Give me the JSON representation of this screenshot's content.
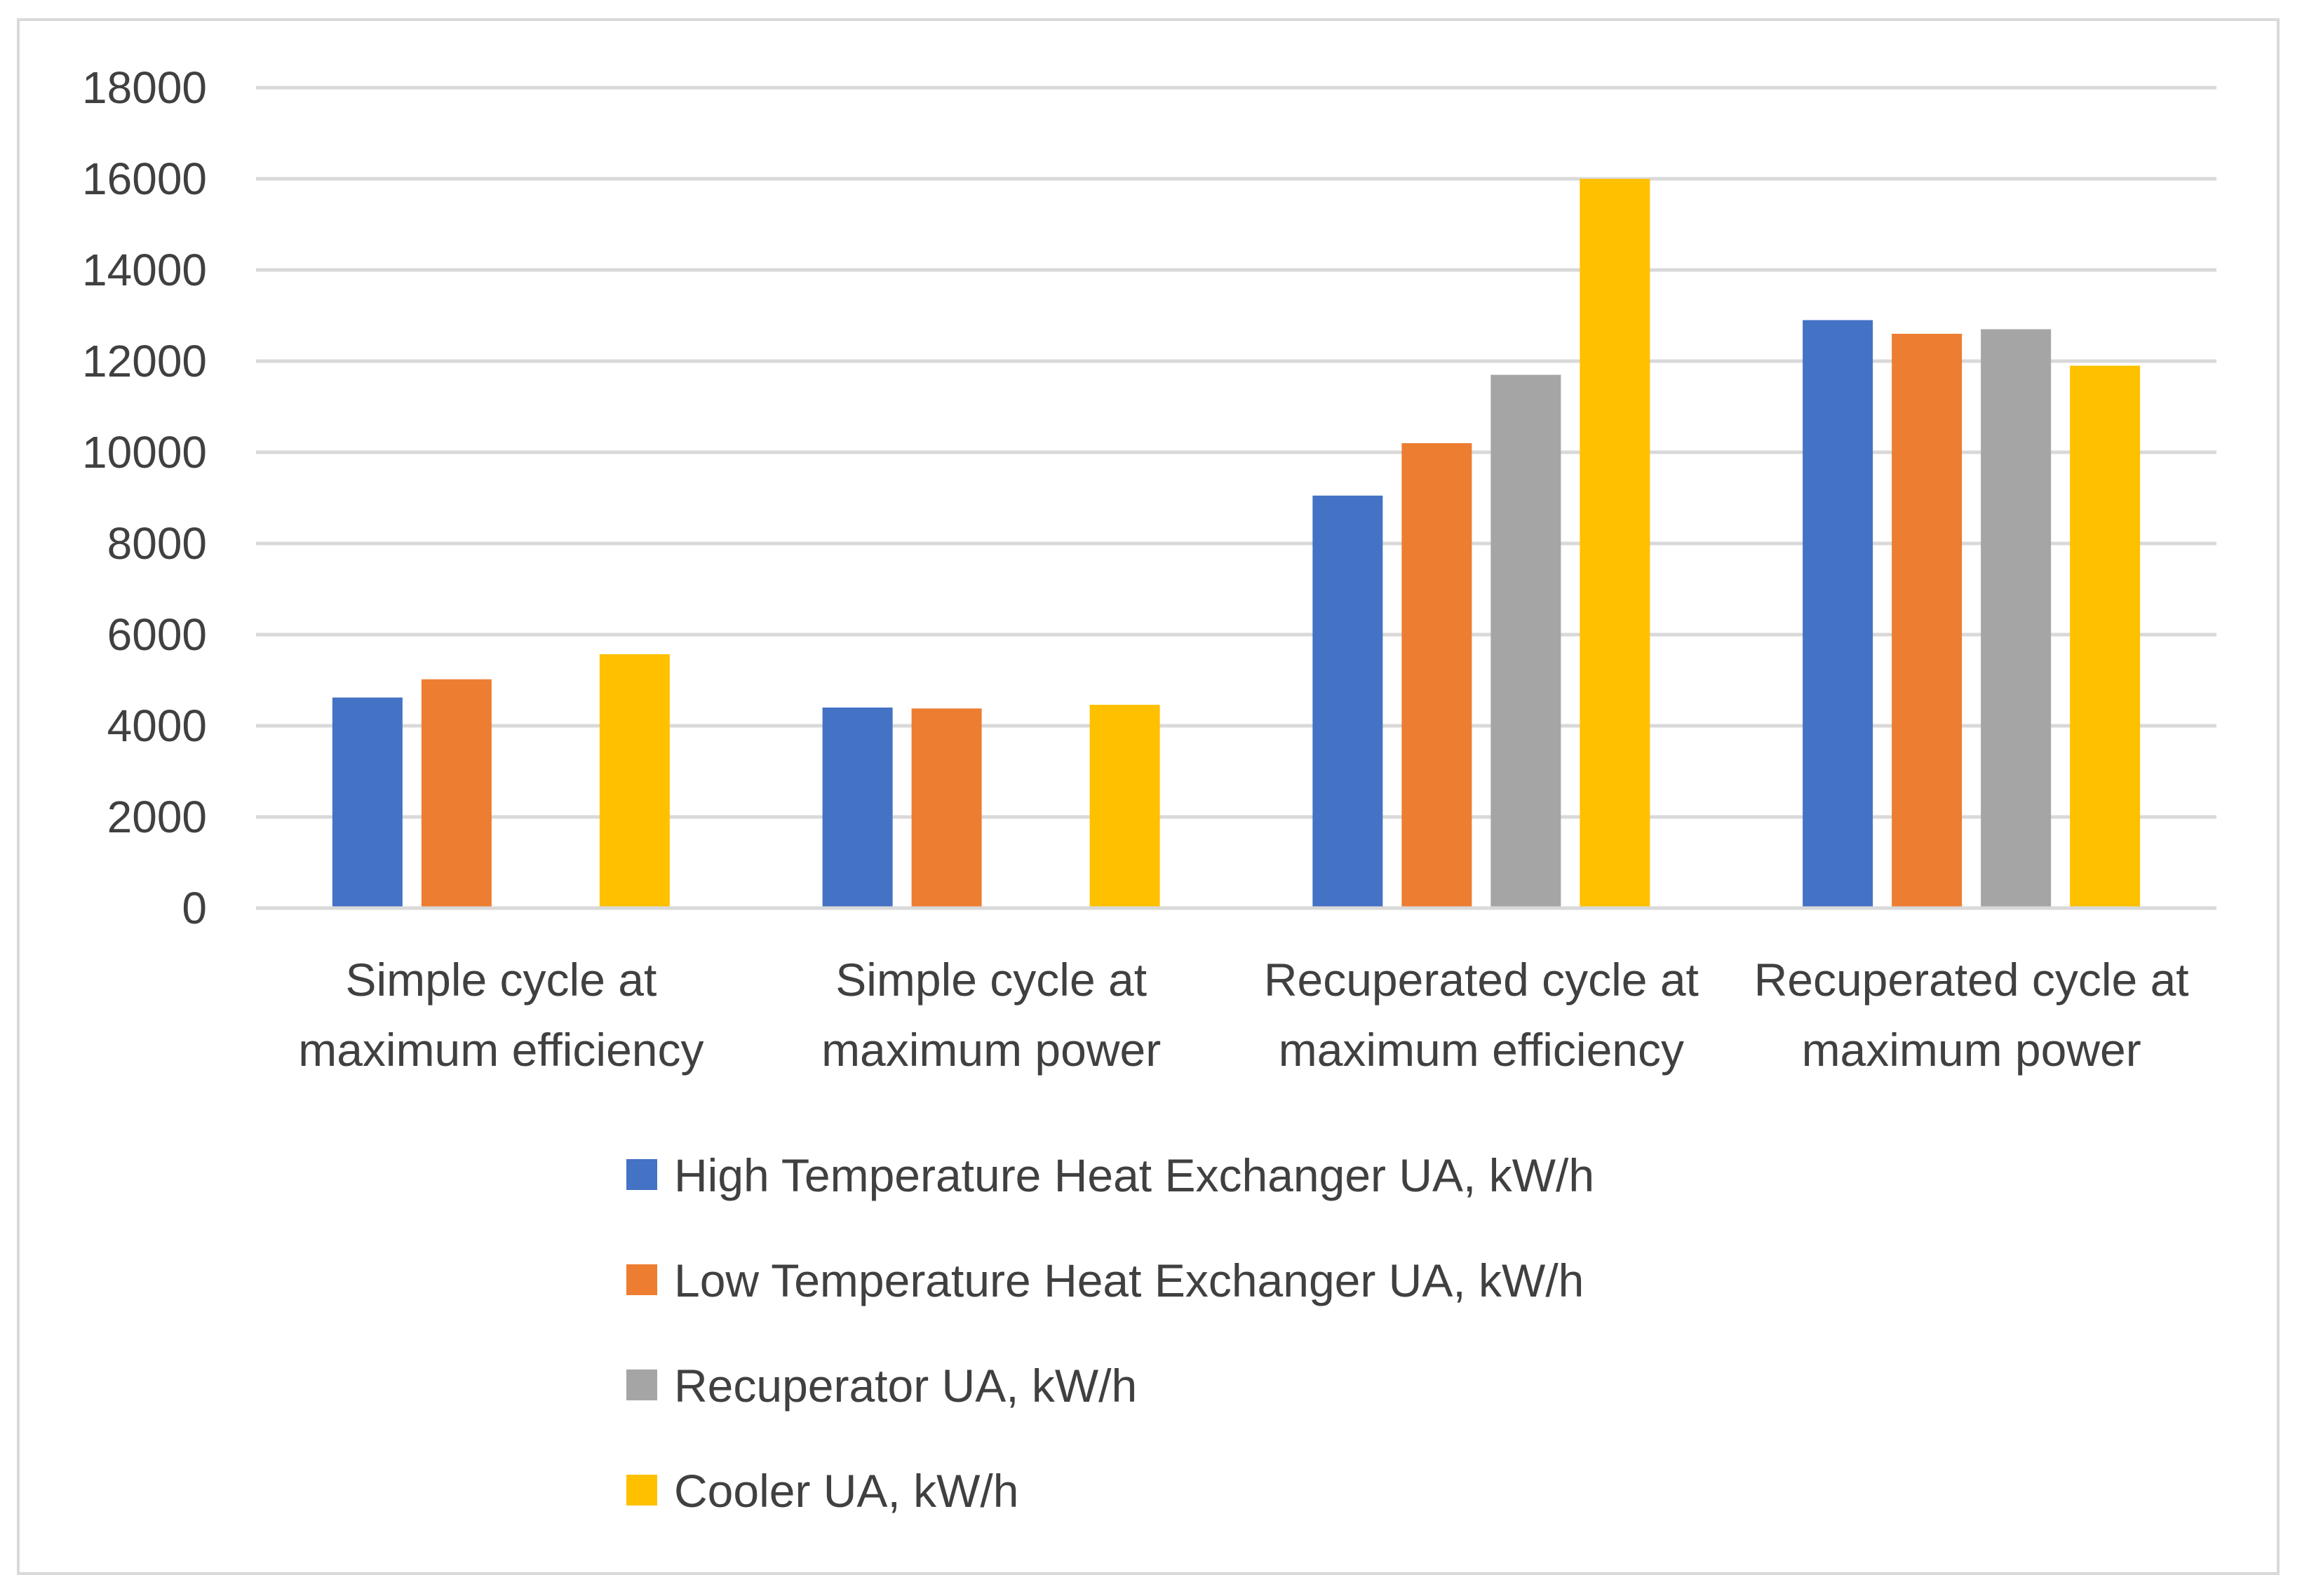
{
  "chart_data": {
    "type": "bar",
    "title": "",
    "xlabel": "",
    "ylabel": "",
    "ylim": [
      0,
      18000
    ],
    "yticks": [
      0,
      2000,
      4000,
      6000,
      8000,
      10000,
      12000,
      14000,
      16000,
      18000
    ],
    "grid": true,
    "legend_position": "bottom",
    "categories": [
      [
        "Simple cycle at",
        "maximum efficiency"
      ],
      [
        "Simple cycle at",
        "maximum power"
      ],
      [
        "Recuperated cycle at",
        "maximum efficiency"
      ],
      [
        "Recuperated cycle at",
        "maximum power"
      ]
    ],
    "series": [
      {
        "name": "High Temperature Heat Exchanger UA, kW/h",
        "color": "#4472C4",
        "values": [
          4620,
          4400,
          9050,
          12900
        ]
      },
      {
        "name": "Low Temperature Heat Exchanger UA, kW/h",
        "color": "#ED7D31",
        "values": [
          5020,
          4380,
          10200,
          12600
        ]
      },
      {
        "name": "Recuperator UA, kW/h",
        "color": "#A5A5A5",
        "values": [
          0,
          0,
          11700,
          12700
        ]
      },
      {
        "name": "Cooler UA, kW/h",
        "color": "#FFC000",
        "values": [
          5570,
          4460,
          16000,
          11900
        ]
      }
    ]
  }
}
